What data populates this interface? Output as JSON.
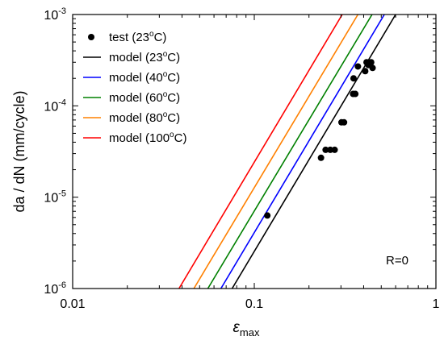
{
  "chart_data": {
    "type": "scatter",
    "title": "",
    "xlabel": "ε",
    "xlabel_sub": "max",
    "ylabel": "da / dN (mm/cycle)",
    "x_scale": "log",
    "y_scale": "log",
    "xlim": [
      0.01,
      1
    ],
    "ylim": [
      1e-06,
      0.001
    ],
    "grid": false,
    "legend_position": "top-left",
    "annotation": "R=0",
    "x_ticks": [
      {
        "value": 0.01,
        "label": "0.01"
      },
      {
        "value": 0.1,
        "label": "0.1"
      },
      {
        "value": 1,
        "label": "1"
      }
    ],
    "y_ticks": [
      {
        "value": 1e-06,
        "base": "10",
        "exp": "-6"
      },
      {
        "value": 1e-05,
        "base": "10",
        "exp": "-5"
      },
      {
        "value": 0.0001,
        "base": "10",
        "exp": "-4"
      },
      {
        "value": 0.001,
        "base": "10",
        "exp": "-3"
      }
    ],
    "series": [
      {
        "name": "test (23°C)",
        "name_parts": [
          "test (23",
          "o",
          "C)"
        ],
        "kind": "scatter",
        "color": "#000000",
        "points": [
          {
            "x": 0.118,
            "y": 6.3e-06
          },
          {
            "x": 0.233,
            "y": 2.7e-05
          },
          {
            "x": 0.247,
            "y": 3.3e-05
          },
          {
            "x": 0.262,
            "y": 3.3e-05
          },
          {
            "x": 0.277,
            "y": 3.3e-05
          },
          {
            "x": 0.302,
            "y": 6.6e-05
          },
          {
            "x": 0.312,
            "y": 6.6e-05
          },
          {
            "x": 0.35,
            "y": 0.000135
          },
          {
            "x": 0.36,
            "y": 0.000135
          },
          {
            "x": 0.352,
            "y": 0.0002
          },
          {
            "x": 0.372,
            "y": 0.00027
          },
          {
            "x": 0.408,
            "y": 0.00024
          },
          {
            "x": 0.415,
            "y": 0.0003
          },
          {
            "x": 0.425,
            "y": 0.00028
          },
          {
            "x": 0.44,
            "y": 0.0003
          },
          {
            "x": 0.448,
            "y": 0.00026
          }
        ]
      },
      {
        "name": "model (23°C)",
        "name_parts": [
          "model (23",
          "o",
          "C)"
        ],
        "kind": "line",
        "color": "#000000",
        "points": [
          {
            "x": 0.0755,
            "y": 1e-06
          },
          {
            "x": 0.6,
            "y": 0.001
          }
        ]
      },
      {
        "name": "model (40°C)",
        "name_parts": [
          "model (40",
          "o",
          "C)"
        ],
        "kind": "line",
        "color": "#0000ff",
        "points": [
          {
            "x": 0.0655,
            "y": 1e-06
          },
          {
            "x": 0.52,
            "y": 0.001
          }
        ]
      },
      {
        "name": "model (60°C)",
        "name_parts": [
          "model (60",
          "o",
          "C)"
        ],
        "kind": "line",
        "color": "#008000",
        "points": [
          {
            "x": 0.0555,
            "y": 1e-06
          },
          {
            "x": 0.445,
            "y": 0.001
          }
        ]
      },
      {
        "name": "model (80°C)",
        "name_parts": [
          "model (80",
          "o",
          "C)"
        ],
        "kind": "line",
        "color": "#ff8000",
        "points": [
          {
            "x": 0.0465,
            "y": 1e-06
          },
          {
            "x": 0.372,
            "y": 0.001
          }
        ]
      },
      {
        "name": "model (100°C)",
        "name_parts": [
          "model (100",
          "o",
          "C)"
        ],
        "kind": "line",
        "color": "#ff0000",
        "points": [
          {
            "x": 0.0385,
            "y": 1e-06
          },
          {
            "x": 0.305,
            "y": 0.001
          }
        ]
      }
    ]
  }
}
